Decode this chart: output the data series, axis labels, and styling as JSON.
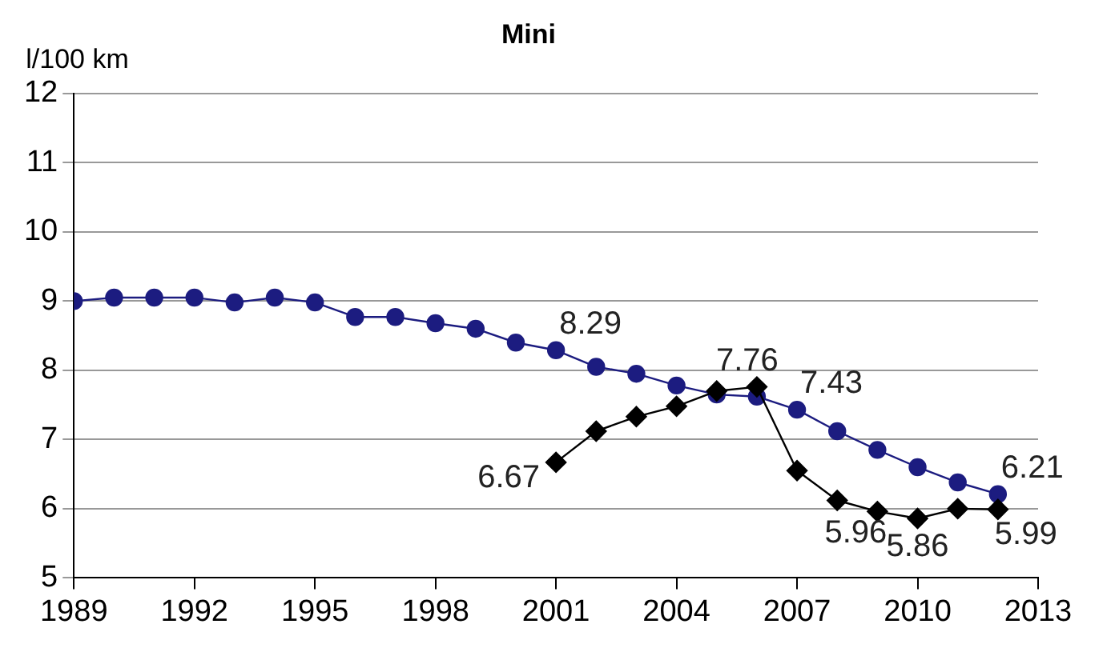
{
  "chart_data": {
    "type": "line",
    "title": "Mini",
    "ylabel": "l/100 km",
    "x": [
      1989,
      1990,
      1991,
      1992,
      1993,
      1994,
      1995,
      1996,
      1997,
      1998,
      1999,
      2000,
      2001,
      2002,
      2003,
      2004,
      2005,
      2006,
      2007,
      2008,
      2009,
      2010,
      2011,
      2012
    ],
    "series": [
      {
        "color": "#1c1c80",
        "marker": "circle",
        "values": [
          9.0,
          9.05,
          9.05,
          9.05,
          8.98,
          9.05,
          8.98,
          8.77,
          8.77,
          8.68,
          8.6,
          8.4,
          8.29,
          8.05,
          7.95,
          7.78,
          7.65,
          7.62,
          7.43,
          7.12,
          6.85,
          6.6,
          6.38,
          6.21
        ],
        "value_labels": [
          null,
          null,
          null,
          null,
          null,
          null,
          null,
          null,
          null,
          null,
          null,
          null,
          "8.29",
          null,
          null,
          null,
          null,
          null,
          "7.43",
          null,
          null,
          null,
          null,
          "6.21"
        ]
      },
      {
        "color": "#000000",
        "marker": "diamond",
        "x": [
          2001,
          2002,
          2003,
          2004,
          2005,
          2006,
          2007,
          2008,
          2009,
          2010,
          2011,
          2012
        ],
        "values": [
          6.67,
          7.12,
          7.33,
          7.48,
          7.7,
          7.76,
          6.55,
          6.12,
          5.96,
          5.86,
          6.0,
          5.99
        ],
        "value_labels": [
          "6.67",
          null,
          null,
          null,
          null,
          "7.76",
          null,
          null,
          "5.96",
          "5.86",
          null,
          "5.99"
        ]
      }
    ],
    "xlim": [
      1989,
      2013
    ],
    "xticks": [
      1989,
      1992,
      1995,
      1998,
      2001,
      2004,
      2007,
      2010,
      2013
    ],
    "ylim": [
      5,
      12
    ],
    "yticks": [
      5,
      6,
      7,
      8,
      9,
      10,
      11,
      12
    ],
    "grid": "y",
    "line_style": "solid"
  }
}
